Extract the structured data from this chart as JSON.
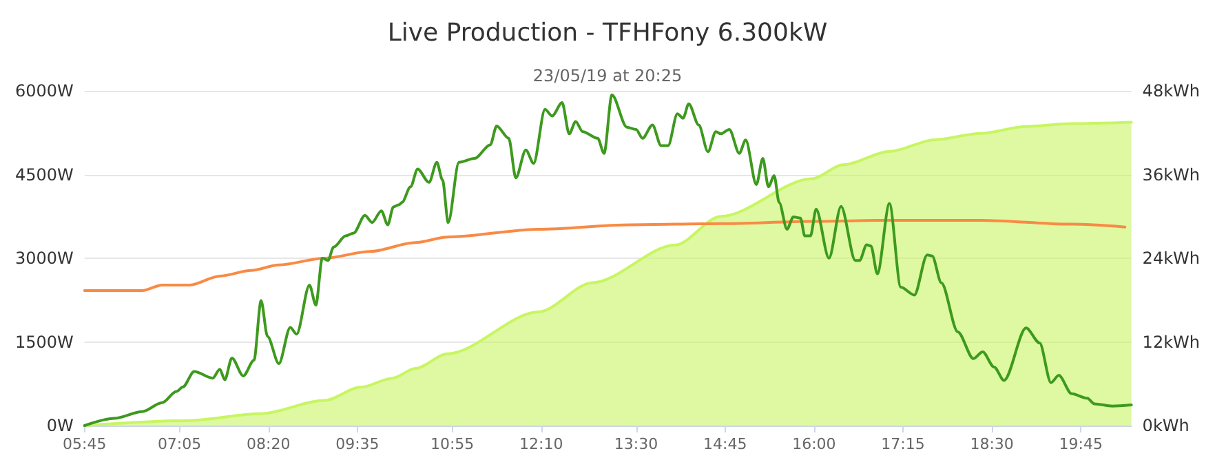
{
  "chart_data": {
    "type": "line",
    "title": "Live Production - TFHFony 6.300kW",
    "subtitle": "23/05/19 at 20:25",
    "xlim": [
      5.75,
      20.46
    ],
    "xticks": [
      {
        "value": 5.75,
        "label": "05:45"
      },
      {
        "value": 7.0833,
        "label": "07:05"
      },
      {
        "value": 8.3333,
        "label": "08:20"
      },
      {
        "value": 9.5833,
        "label": "09:35"
      },
      {
        "value": 10.9167,
        "label": "10:55"
      },
      {
        "value": 12.1667,
        "label": "12:10"
      },
      {
        "value": 13.5,
        "label": "13:30"
      },
      {
        "value": 14.75,
        "label": "14:45"
      },
      {
        "value": 16,
        "label": "16:00"
      },
      {
        "value": 17.25,
        "label": "17:15"
      },
      {
        "value": 18.5,
        "label": "18:30"
      },
      {
        "value": 19.75,
        "label": "19:45"
      }
    ],
    "ylim": [
      0,
      6000
    ],
    "yticks": [
      {
        "value": 0,
        "label": "0W"
      },
      {
        "value": 1500,
        "label": "1500W"
      },
      {
        "value": 3000,
        "label": "3000W"
      },
      {
        "value": 4500,
        "label": "4500W"
      },
      {
        "value": 6000,
        "label": "6000W"
      }
    ],
    "y2lim": [
      0,
      48
    ],
    "y2ticks": [
      {
        "value": 0,
        "label": "0kWh"
      },
      {
        "value": 12,
        "label": "12kWh"
      },
      {
        "value": 24,
        "label": "24kWh"
      },
      {
        "value": 36,
        "label": "36kWh"
      },
      {
        "value": 48,
        "label": "48kWh"
      }
    ],
    "grid": "y",
    "marker": "none",
    "line_style": "solid",
    "series": [
      {
        "type": "area",
        "axis": "y2",
        "color": "#c8f562",
        "x": [
          5.75,
          7.2,
          8.22,
          9.12,
          9.63,
          10.08,
          10.4,
          10.85,
          12.13,
          12.89,
          14.05,
          14.69,
          15.97,
          16.41,
          17.06,
          17.7,
          18.34,
          18.98,
          19.62,
          20.46
        ],
        "values": [
          0,
          0.7,
          1.7,
          3.6,
          5.5,
          6.8,
          8.2,
          10.3,
          16.3,
          20.5,
          25.9,
          30,
          35.4,
          37.4,
          39.3,
          41,
          41.9,
          42.9,
          43.3,
          43.5
        ]
      },
      {
        "color": "#f98a45",
        "x": [
          5.75,
          6.56,
          6.84,
          7.23,
          7.65,
          8.09,
          8.48,
          9.12,
          9.76,
          10.4,
          10.85,
          12.13,
          13.41,
          14.69,
          15.97,
          17.06,
          18.34,
          19.62,
          20.37
        ],
        "values": [
          2420,
          2420,
          2520,
          2520,
          2680,
          2780,
          2880,
          3000,
          3120,
          3280,
          3380,
          3520,
          3600,
          3620,
          3660,
          3680,
          3680,
          3610,
          3560
        ]
      },
      {
        "color": "#3d9a1e",
        "x": [
          5.75,
          6.17,
          6.56,
          6.84,
          7.04,
          7.13,
          7.29,
          7.55,
          7.65,
          7.72,
          7.82,
          7.98,
          8.13,
          8.23,
          8.32,
          8.48,
          8.64,
          8.73,
          8.91,
          9.0,
          9.09,
          9.17,
          9.25,
          9.42,
          9.53,
          9.69,
          9.79,
          9.92,
          10.01,
          10.09,
          10.17,
          10.21,
          10.33,
          10.43,
          10.59,
          10.7,
          10.78,
          10.86,
          11.01,
          11.23,
          11.45,
          11.54,
          11.71,
          11.81,
          11.95,
          12.06,
          12.22,
          12.32,
          12.46,
          12.56,
          12.65,
          12.75,
          12.96,
          13.05,
          13.16,
          13.37,
          13.5,
          13.59,
          13.73,
          13.85,
          13.95,
          14.08,
          14.16,
          14.24,
          14.38,
          14.51,
          14.62,
          14.69,
          14.81,
          14.95,
          15.04,
          15.19,
          15.28,
          15.36,
          15.44,
          15.51,
          15.62,
          15.71,
          15.81,
          15.87,
          15.95,
          16.03,
          16.21,
          16.38,
          16.58,
          16.64,
          16.74,
          16.8,
          16.89,
          17.06,
          17.22,
          17.41,
          17.59,
          17.66,
          17.79,
          18.02,
          18.24,
          18.37,
          18.53,
          18.67,
          18.98,
          19.17,
          19.33,
          19.44,
          19.62,
          19.84,
          19.94,
          20.19,
          20.46
        ],
        "values": [
          0,
          130,
          250,
          410,
          610,
          690,
          970,
          850,
          1010,
          820,
          1210,
          890,
          1170,
          2240,
          1600,
          1110,
          1760,
          1640,
          2520,
          2160,
          3000,
          2960,
          3200,
          3400,
          3450,
          3770,
          3640,
          3850,
          3600,
          3920,
          3960,
          4000,
          4280,
          4600,
          4360,
          4720,
          4400,
          3640,
          4720,
          4790,
          5030,
          5370,
          5150,
          4440,
          4940,
          4700,
          5670,
          5550,
          5790,
          5230,
          5450,
          5270,
          5150,
          4880,
          5930,
          5350,
          5310,
          5150,
          5390,
          5020,
          5020,
          5590,
          5510,
          5770,
          5390,
          4910,
          5270,
          5230,
          5310,
          4880,
          5120,
          4320,
          4790,
          4280,
          4480,
          4000,
          3520,
          3740,
          3720,
          3400,
          3400,
          3880,
          3000,
          3930,
          2960,
          2960,
          3240,
          3220,
          2720,
          3980,
          2480,
          2340,
          3060,
          3040,
          2560,
          1680,
          1200,
          1320,
          1050,
          810,
          1750,
          1480,
          770,
          900,
          570,
          490,
          390,
          350,
          370
        ]
      }
    ]
  }
}
